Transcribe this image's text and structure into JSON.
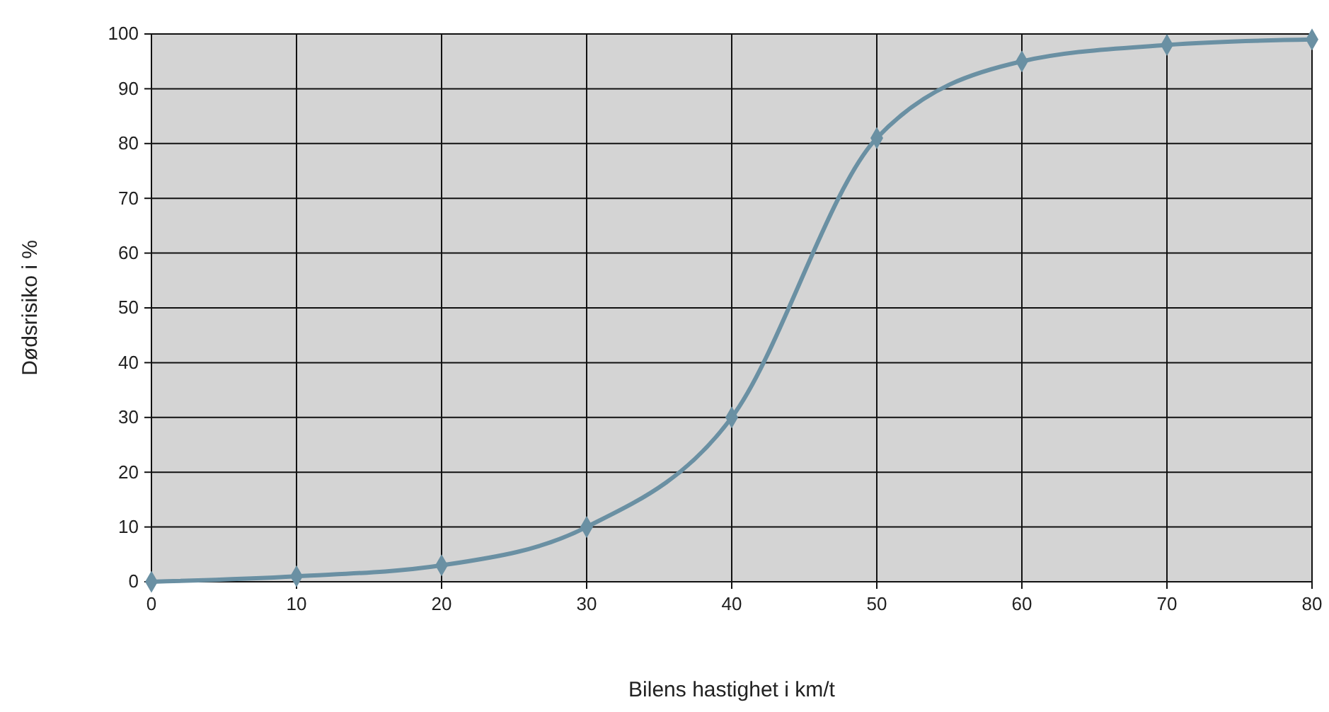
{
  "chart_data": {
    "type": "line",
    "xlabel": "Bilens hastighet i km/t",
    "ylabel": "Dødsrisiko i %",
    "x": [
      0,
      10,
      20,
      30,
      40,
      50,
      60,
      70,
      80
    ],
    "series": [
      {
        "color": "#6a90a3",
        "values": [
          0,
          1,
          3,
          10,
          30,
          81,
          95,
          98,
          99
        ]
      }
    ],
    "xlim": [
      0,
      80
    ],
    "xticks": [
      0,
      10,
      20,
      30,
      40,
      50,
      60,
      70,
      80
    ],
    "ylim": [
      0,
      100
    ],
    "yticks": [
      0,
      10,
      20,
      30,
      40,
      50,
      60,
      70,
      80,
      90,
      100
    ],
    "grid": true,
    "marker": "diamond",
    "line_style": "solid"
  }
}
